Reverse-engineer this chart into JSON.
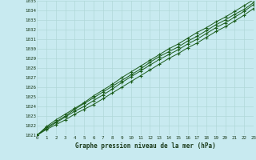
{
  "title": "Graphe pression niveau de la mer (hPa)",
  "bg_color": "#c8eaf0",
  "grid_color": "#b0d8d8",
  "line_color": "#1a5c1a",
  "xlim": [
    0,
    23
  ],
  "ylim": [
    1021,
    1035
  ],
  "xticks": [
    0,
    1,
    2,
    3,
    4,
    5,
    6,
    7,
    8,
    9,
    10,
    11,
    12,
    13,
    14,
    15,
    16,
    17,
    18,
    19,
    20,
    21,
    22,
    23
  ],
  "yticks": [
    1021,
    1022,
    1023,
    1024,
    1025,
    1026,
    1027,
    1028,
    1029,
    1030,
    1031,
    1032,
    1033,
    1034,
    1035
  ],
  "series": [
    [
      1021.0,
      1021.6,
      1022.1,
      1022.6,
      1023.2,
      1023.7,
      1024.2,
      1024.8,
      1025.4,
      1026.0,
      1026.6,
      1027.2,
      1027.8,
      1028.4,
      1029.0,
      1029.5,
      1030.1,
      1030.6,
      1031.2,
      1031.8,
      1032.3,
      1032.9,
      1033.5,
      1034.2
    ],
    [
      1021.0,
      1021.7,
      1022.3,
      1022.9,
      1023.5,
      1024.0,
      1024.6,
      1025.2,
      1025.8,
      1026.5,
      1027.1,
      1027.7,
      1028.3,
      1028.9,
      1029.4,
      1029.9,
      1030.5,
      1031.0,
      1031.6,
      1032.2,
      1032.7,
      1033.3,
      1033.9,
      1034.6
    ],
    [
      1021.0,
      1021.8,
      1022.4,
      1023.0,
      1023.7,
      1024.3,
      1024.9,
      1025.5,
      1026.1,
      1026.7,
      1027.3,
      1027.9,
      1028.6,
      1029.2,
      1029.7,
      1030.2,
      1030.8,
      1031.3,
      1031.9,
      1032.5,
      1033.0,
      1033.6,
      1034.1,
      1034.8
    ],
    [
      1021.0,
      1021.9,
      1022.6,
      1023.2,
      1023.8,
      1024.4,
      1025.1,
      1025.7,
      1026.3,
      1027.0,
      1027.6,
      1028.2,
      1028.8,
      1029.4,
      1030.0,
      1030.5,
      1031.1,
      1031.7,
      1032.2,
      1032.8,
      1033.3,
      1033.9,
      1034.5,
      1035.1
    ]
  ]
}
